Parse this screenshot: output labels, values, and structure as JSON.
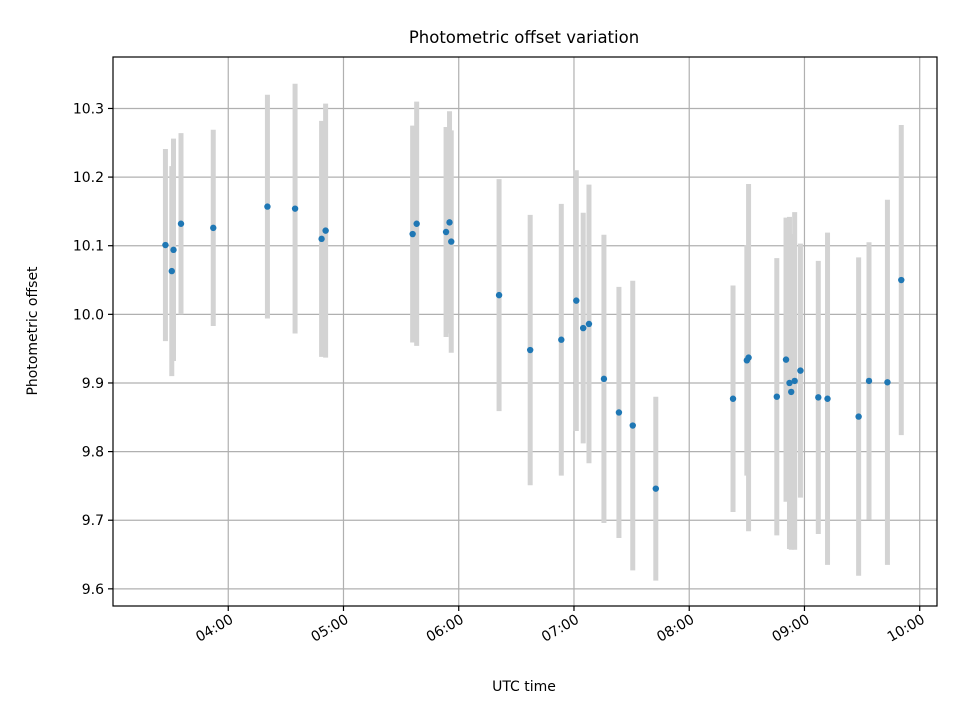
{
  "chart_data": {
    "type": "scatter",
    "title": "Photometric offset variation",
    "xlabel": "UTC time",
    "ylabel": "Photometric offset",
    "x_unit": "hours UTC",
    "xlim": [
      3.0,
      10.15
    ],
    "ylim": [
      9.575,
      10.375
    ],
    "x_ticks": [
      {
        "value": 4,
        "label": "04:00"
      },
      {
        "value": 5,
        "label": "05:00"
      },
      {
        "value": 6,
        "label": "06:00"
      },
      {
        "value": 7,
        "label": "07:00"
      },
      {
        "value": 8,
        "label": "08:00"
      },
      {
        "value": 9,
        "label": "09:00"
      },
      {
        "value": 10,
        "label": "10:00"
      }
    ],
    "y_ticks": [
      {
        "value": 9.6,
        "label": "9.6"
      },
      {
        "value": 9.7,
        "label": "9.7"
      },
      {
        "value": 9.8,
        "label": "9.8"
      },
      {
        "value": 9.9,
        "label": "9.9"
      },
      {
        "value": 10.0,
        "label": "10.0"
      },
      {
        "value": 10.1,
        "label": "10.1"
      },
      {
        "value": 10.2,
        "label": "10.2"
      },
      {
        "value": 10.3,
        "label": "10.3"
      }
    ],
    "grid": true,
    "point_color": "#1f77b4",
    "errorbar_color": "#d3d3d3",
    "points": [
      {
        "x": 3.455,
        "y": 10.101,
        "err": 0.14
      },
      {
        "x": 3.51,
        "y": 10.063,
        "err": 0.153
      },
      {
        "x": 3.525,
        "y": 10.094,
        "err": 0.162
      },
      {
        "x": 3.59,
        "y": 10.132,
        "err": 0.132
      },
      {
        "x": 3.87,
        "y": 10.126,
        "err": 0.143
      },
      {
        "x": 4.34,
        "y": 10.157,
        "err": 0.163
      },
      {
        "x": 4.58,
        "y": 10.154,
        "err": 0.182
      },
      {
        "x": 4.81,
        "y": 10.11,
        "err": 0.172
      },
      {
        "x": 4.845,
        "y": 10.122,
        "err": 0.185
      },
      {
        "x": 5.6,
        "y": 10.117,
        "err": 0.158
      },
      {
        "x": 5.635,
        "y": 10.132,
        "err": 0.178
      },
      {
        "x": 5.89,
        "y": 10.12,
        "err": 0.153
      },
      {
        "x": 5.92,
        "y": 10.134,
        "err": 0.162
      },
      {
        "x": 5.935,
        "y": 10.106,
        "err": 0.162
      },
      {
        "x": 6.35,
        "y": 10.028,
        "err": 0.169
      },
      {
        "x": 6.62,
        "y": 9.948,
        "err": 0.197
      },
      {
        "x": 6.89,
        "y": 9.963,
        "err": 0.198
      },
      {
        "x": 7.02,
        "y": 10.02,
        "err": 0.19
      },
      {
        "x": 7.08,
        "y": 9.98,
        "err": 0.168
      },
      {
        "x": 7.13,
        "y": 9.986,
        "err": 0.203
      },
      {
        "x": 7.26,
        "y": 9.906,
        "err": 0.21
      },
      {
        "x": 7.39,
        "y": 9.857,
        "err": 0.183
      },
      {
        "x": 7.51,
        "y": 9.838,
        "err": 0.211
      },
      {
        "x": 7.71,
        "y": 9.746,
        "err": 0.134
      },
      {
        "x": 8.38,
        "y": 9.877,
        "err": 0.165
      },
      {
        "x": 8.5,
        "y": 9.933,
        "err": 0.168
      },
      {
        "x": 8.515,
        "y": 9.937,
        "err": 0.253
      },
      {
        "x": 8.76,
        "y": 9.88,
        "err": 0.202
      },
      {
        "x": 8.84,
        "y": 9.934,
        "err": 0.207
      },
      {
        "x": 8.87,
        "y": 9.9,
        "err": 0.242
      },
      {
        "x": 8.885,
        "y": 9.887,
        "err": 0.23
      },
      {
        "x": 8.915,
        "y": 9.903,
        "err": 0.246
      },
      {
        "x": 8.965,
        "y": 9.918,
        "err": 0.185
      },
      {
        "x": 9.12,
        "y": 9.879,
        "err": 0.199
      },
      {
        "x": 9.2,
        "y": 9.877,
        "err": 0.242
      },
      {
        "x": 9.47,
        "y": 9.851,
        "err": 0.232
      },
      {
        "x": 9.56,
        "y": 9.903,
        "err": 0.202
      },
      {
        "x": 9.72,
        "y": 9.901,
        "err": 0.266
      },
      {
        "x": 9.84,
        "y": 10.05,
        "err": 0.226
      }
    ]
  }
}
